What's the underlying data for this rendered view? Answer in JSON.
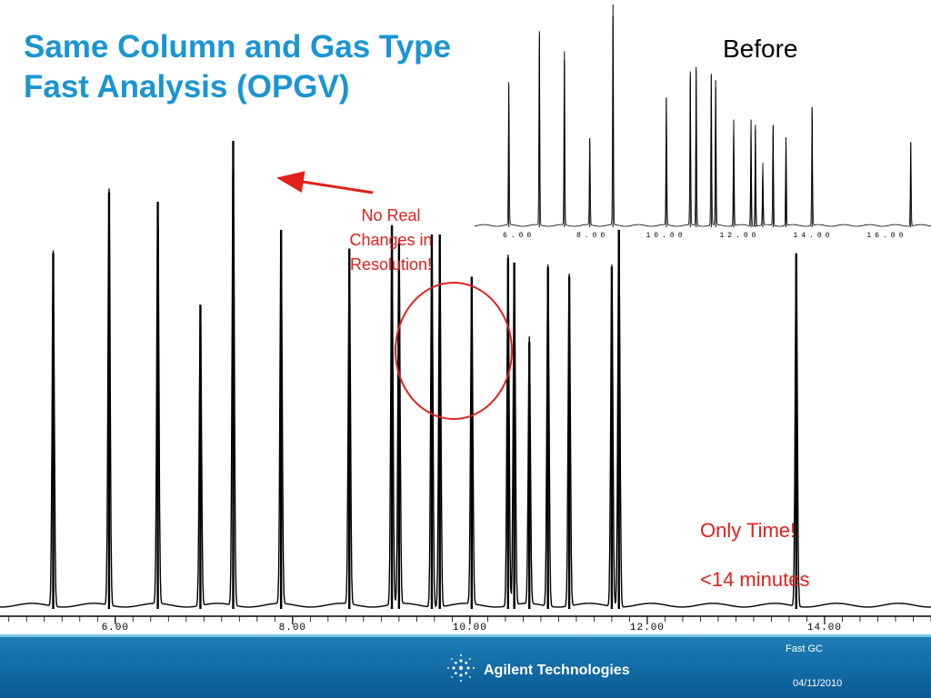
{
  "slide": {
    "title_line1": "Same Column and Gas Type",
    "title_line2": "Fast Analysis  (OPGV)",
    "before_label": "Before",
    "callout": [
      "No Real",
      "Changes in",
      "Resolution!"
    ],
    "only_time": "Only Time!",
    "minutes": "<14 minutes",
    "colors": {
      "title": "#1a95d3",
      "annotation": "#e0201c",
      "footer": "#0a5a93",
      "trace": "#000000"
    }
  },
  "footer": {
    "company": "Agilent Technologies",
    "topic": "Fast GC",
    "date": "04/11/2010",
    "logo_icon": "agilent-spark-icon"
  },
  "chart_data": [
    {
      "type": "line",
      "name": "after",
      "xlim": [
        4.7,
        15.2
      ],
      "ticks": [
        6.0,
        8.0,
        10.0,
        12.0,
        14.0
      ],
      "tick_labels": [
        "6.00",
        "8.00",
        "10.00",
        "12.00",
        "14.00"
      ],
      "peaks": [
        {
          "t": 5.3,
          "h": 0.76
        },
        {
          "t": 5.93,
          "h": 0.89
        },
        {
          "t": 6.48,
          "h": 0.87
        },
        {
          "t": 6.96,
          "h": 0.65
        },
        {
          "t": 7.33,
          "h": 1.0
        },
        {
          "t": 7.87,
          "h": 0.81
        },
        {
          "t": 8.64,
          "h": 0.77
        },
        {
          "t": 9.12,
          "h": 0.82
        },
        {
          "t": 9.2,
          "h": 0.78
        },
        {
          "t": 9.57,
          "h": 0.8
        },
        {
          "t": 9.66,
          "h": 0.8
        },
        {
          "t": 10.02,
          "h": 0.71
        },
        {
          "t": 10.43,
          "h": 0.75
        },
        {
          "t": 10.5,
          "h": 0.74
        },
        {
          "t": 10.67,
          "h": 0.57
        },
        {
          "t": 10.88,
          "h": 0.73
        },
        {
          "t": 11.12,
          "h": 0.71
        },
        {
          "t": 11.6,
          "h": 0.73
        },
        {
          "t": 11.68,
          "h": 0.81
        },
        {
          "t": 13.68,
          "h": 0.76
        }
      ]
    },
    {
      "type": "line",
      "name": "before",
      "xlim": [
        4.8,
        17.2
      ],
      "ticks": [
        6.0,
        8.0,
        10.0,
        12.0,
        14.0,
        16.0
      ],
      "tick_labels": [
        "6.00",
        "8.00",
        "10.00",
        "12.00",
        "14.00",
        "16.00"
      ],
      "peaks": [
        {
          "t": 5.73,
          "h": 0.64
        },
        {
          "t": 6.56,
          "h": 0.88
        },
        {
          "t": 7.24,
          "h": 0.79
        },
        {
          "t": 7.93,
          "h": 0.4
        },
        {
          "t": 8.56,
          "h": 1.0
        },
        {
          "t": 10.01,
          "h": 0.58
        },
        {
          "t": 10.66,
          "h": 0.7
        },
        {
          "t": 10.82,
          "h": 0.72
        },
        {
          "t": 11.23,
          "h": 0.68
        },
        {
          "t": 11.35,
          "h": 0.66
        },
        {
          "t": 11.84,
          "h": 0.48
        },
        {
          "t": 12.31,
          "h": 0.48
        },
        {
          "t": 12.43,
          "h": 0.46
        },
        {
          "t": 12.63,
          "h": 0.28
        },
        {
          "t": 12.91,
          "h": 0.46
        },
        {
          "t": 13.26,
          "h": 0.4
        },
        {
          "t": 13.97,
          "h": 0.54
        },
        {
          "t": 16.65,
          "h": 0.38
        }
      ]
    }
  ]
}
